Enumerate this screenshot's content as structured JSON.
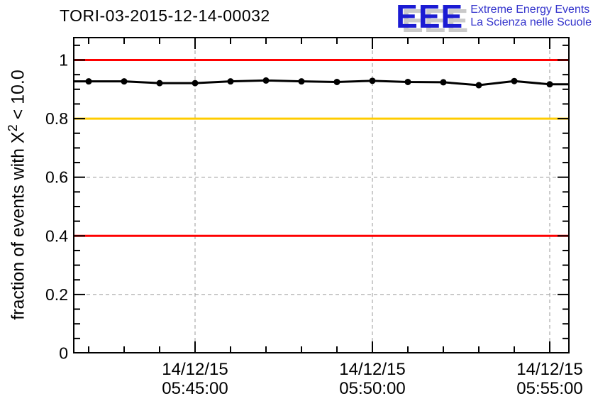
{
  "header": {
    "title": "TORI-03-2015-12-14-00032"
  },
  "logo": {
    "acronym": "EEE",
    "line1": "Extreme Energy Events",
    "line2": "La Scienza nelle Scuole",
    "accent_color": "#1b1bd3",
    "text_color": "#3333cc"
  },
  "chart_data": {
    "type": "line",
    "title": "TORI-03-2015-12-14-00032",
    "ylabel": "fraction of events with X² < 10.0",
    "ylabel_parts": {
      "pre": "fraction of events with X",
      "sup": "2",
      "post": " < 10.0"
    },
    "xlabel": "",
    "ylim": [
      0,
      1.075
    ],
    "grid": true,
    "grid_color": "#999999",
    "legend": "none",
    "series_color": "#000000",
    "marker": "filled-circle",
    "x": [
      "05:42:00",
      "05:43:00",
      "05:44:00",
      "05:45:00",
      "05:46:00",
      "05:47:00",
      "05:48:00",
      "05:49:00",
      "05:50:00",
      "05:51:00",
      "05:52:00",
      "05:53:00",
      "05:54:00",
      "05:55:00"
    ],
    "values": [
      0.927,
      0.927,
      0.921,
      0.921,
      0.927,
      0.93,
      0.927,
      0.925,
      0.929,
      0.925,
      0.924,
      0.914,
      0.928,
      0.917
    ],
    "y_ticks": [
      0,
      0.2,
      0.4,
      0.6,
      0.8,
      1
    ],
    "y_tick_labels": [
      "0",
      "0.2",
      "0.4",
      "0.6",
      "0.8",
      "1"
    ],
    "y_minor_step": 0.05,
    "x_axis_labels": [
      {
        "date": "14/12/15",
        "time": "05:45:00"
      },
      {
        "date": "14/12/15",
        "time": "05:50:00"
      },
      {
        "date": "14/12/15",
        "time": "05:55:00"
      }
    ],
    "reference_lines": [
      {
        "y": 1.0,
        "color": "#ff0000"
      },
      {
        "y": 0.8,
        "color": "#ffcc00"
      },
      {
        "y": 0.4,
        "color": "#ff0000"
      }
    ]
  }
}
